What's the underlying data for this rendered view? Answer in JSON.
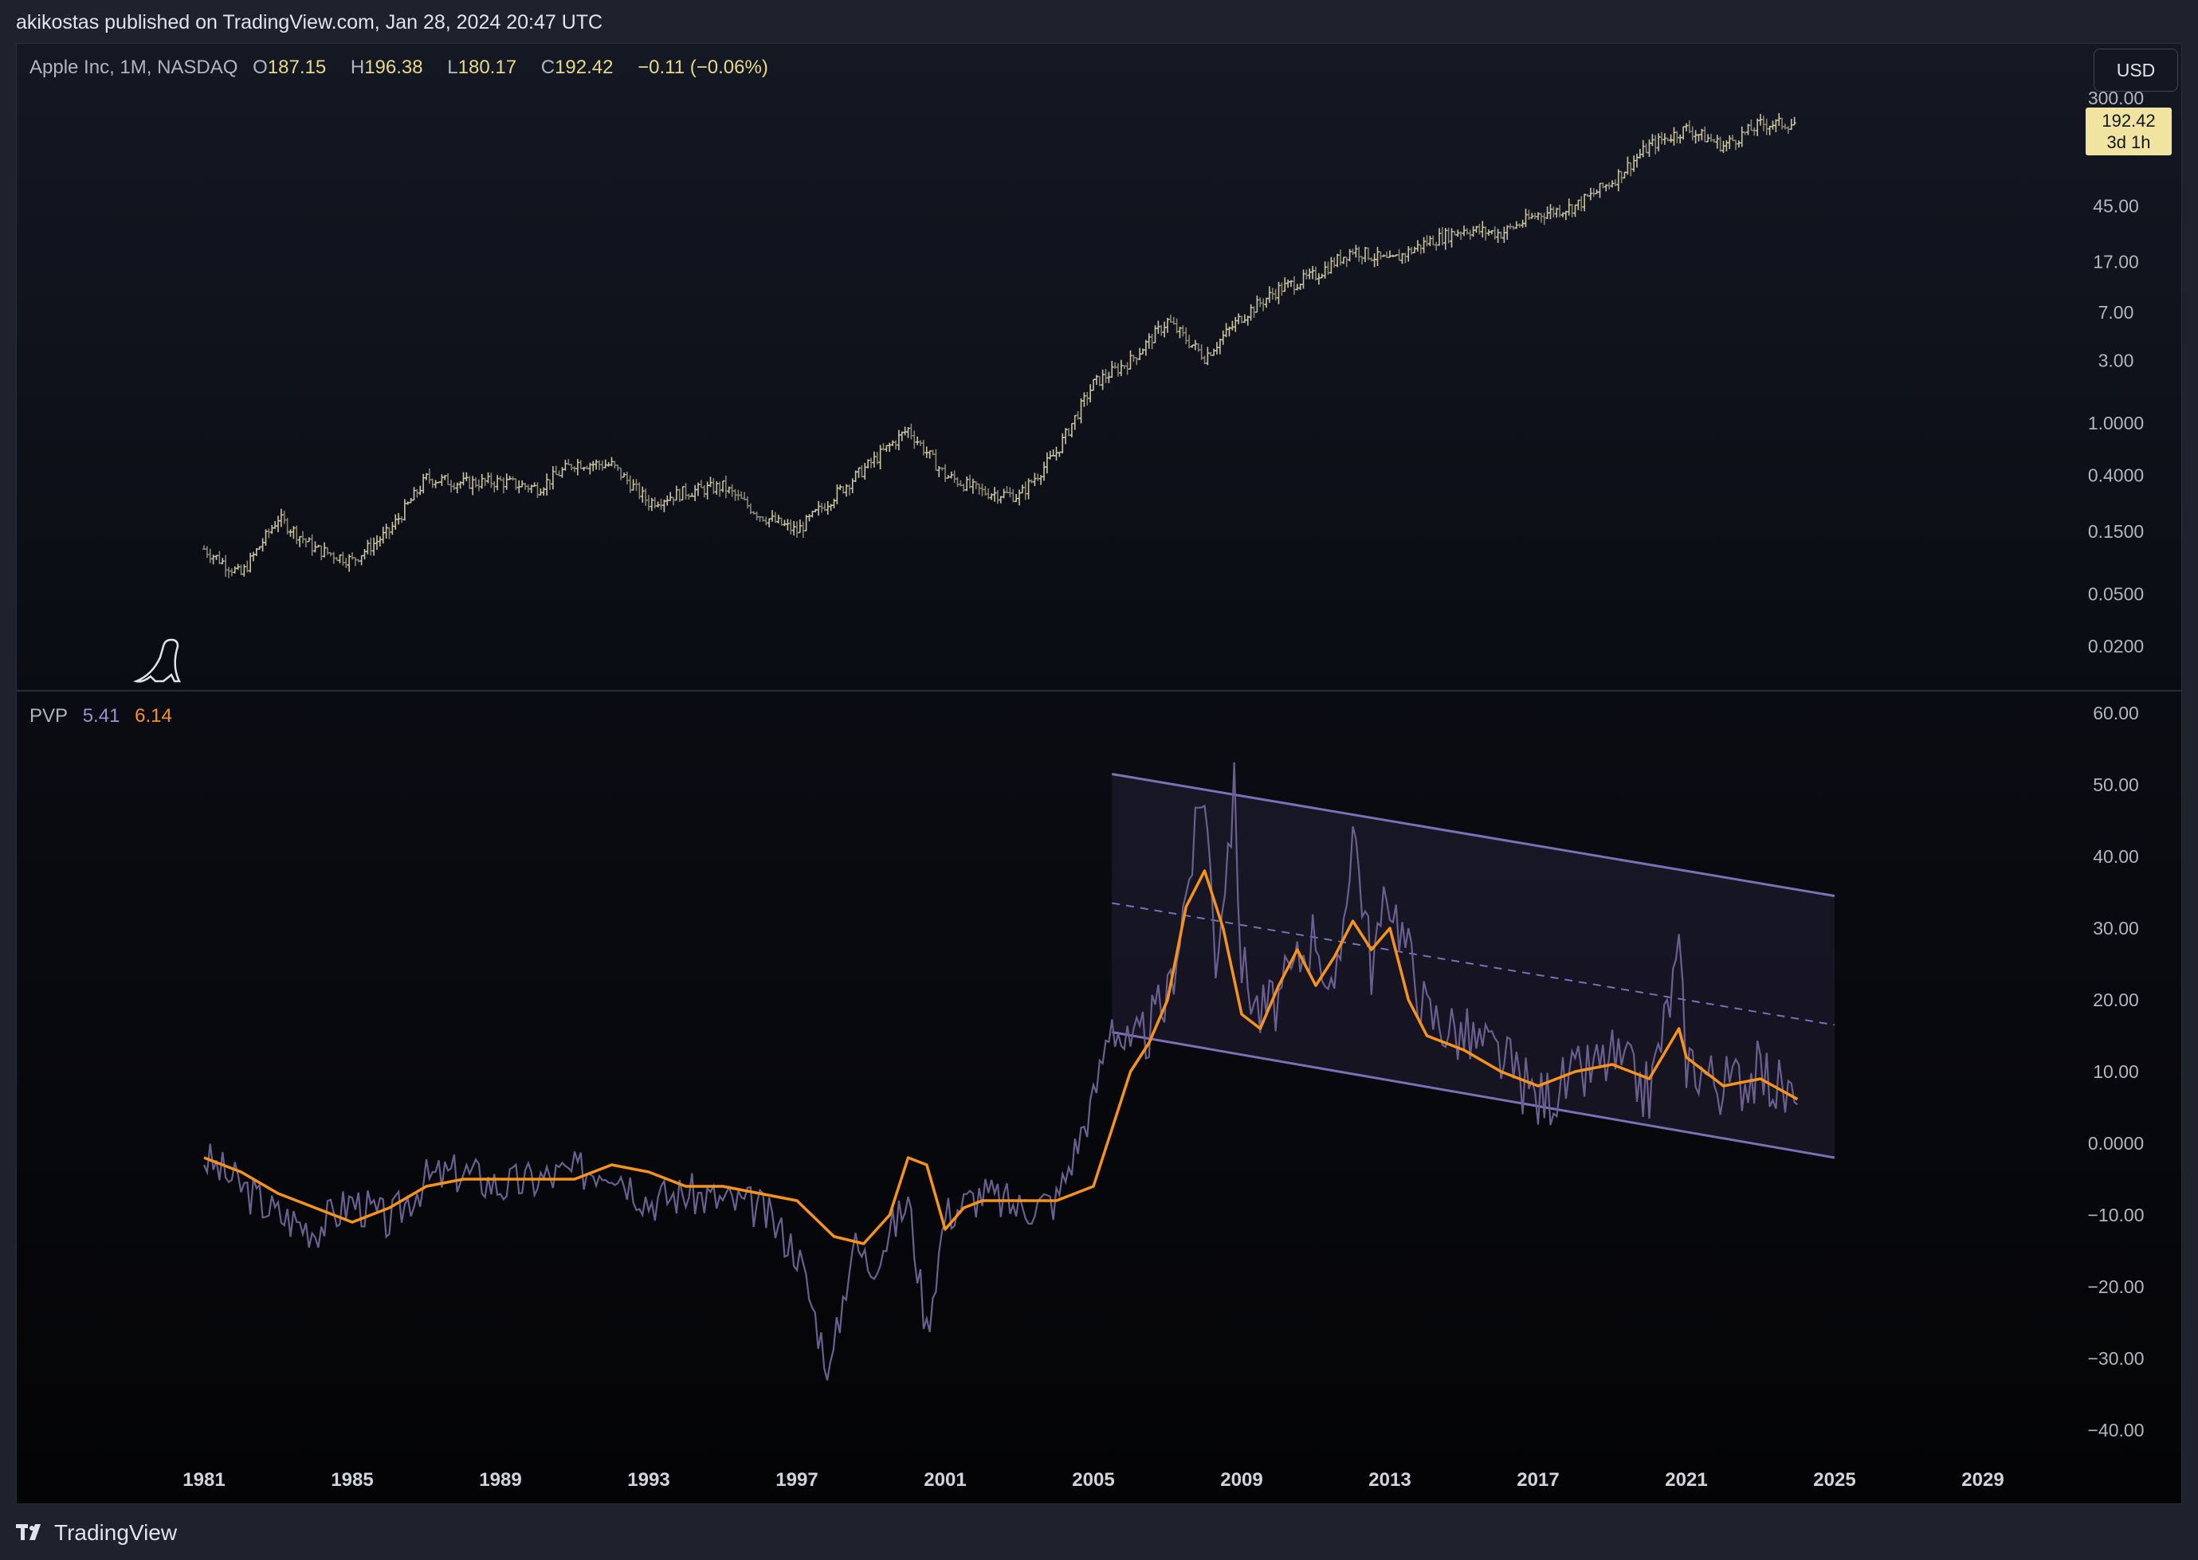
{
  "header": {
    "publish_info": "akikostas published on TradingView.com, Jan 28, 2024 20:47 UTC"
  },
  "price_pane": {
    "symbol": "Apple Inc, 1M, NASDAQ",
    "open_label": "O",
    "open": "187.15",
    "high_label": "H",
    "high": "196.38",
    "low_label": "L",
    "low": "180.17",
    "close_label": "C",
    "close": "192.42",
    "change": "−0.11 (−0.06%)",
    "currency_button": "USD",
    "price_tag": {
      "value": "192.42",
      "countdown": "3d 1h",
      "color": "#f1e3a0"
    },
    "y_ticks": [
      "300.00",
      "45.00",
      "17.00",
      "7.00",
      "3.00",
      "1.0000",
      "0.4000",
      "0.1500",
      "0.0500",
      "0.0200"
    ]
  },
  "indicator_pane": {
    "name": "PVP",
    "value1": "5.41",
    "value2": "6.14",
    "value1_color": "#9c8fd4",
    "value2_color": "#f7931a",
    "y_ticks": [
      "60.00",
      "50.00",
      "40.00",
      "30.00",
      "20.00",
      "10.00",
      "0.0000",
      "−10.00",
      "−20.00",
      "−30.00",
      "−40.00"
    ]
  },
  "x_axis": {
    "ticks": [
      "1981",
      "1985",
      "1989",
      "1993",
      "1997",
      "2001",
      "2005",
      "2009",
      "2013",
      "2017",
      "2021",
      "2025",
      "2029"
    ]
  },
  "footer": {
    "brand": "TradingView"
  },
  "icons": [
    "dinosaur-icon",
    "tradingview-logo-icon"
  ],
  "colors": {
    "background": "#131722",
    "bars": "#c9c3a0",
    "raw_series": "#6a5f8f",
    "ma_series": "#f7931a",
    "channel": "#7b6fb5"
  },
  "chart_data": [
    {
      "type": "ohlc",
      "title": "Apple Inc, 1M, NASDAQ",
      "y_scale": "log",
      "x": [
        1981,
        1982,
        1983,
        1984,
        1985,
        1986,
        1987,
        1988,
        1989,
        1990,
        1991,
        1992,
        1993,
        1994,
        1995,
        1996,
        1997,
        1998,
        1999,
        2000,
        2001,
        2002,
        2003,
        2004,
        2005,
        2006,
        2007,
        2008,
        2009,
        2010,
        2011,
        2012,
        2013,
        2014,
        2015,
        2016,
        2017,
        2018,
        2019,
        2020,
        2021,
        2022,
        2023,
        2024
      ],
      "close_approx": [
        0.11,
        0.07,
        0.19,
        0.11,
        0.09,
        0.15,
        0.38,
        0.35,
        0.36,
        0.32,
        0.5,
        0.48,
        0.25,
        0.3,
        0.33,
        0.2,
        0.15,
        0.28,
        0.5,
        0.9,
        0.4,
        0.3,
        0.28,
        0.6,
        2.0,
        3.0,
        6.0,
        3.2,
        6.5,
        10.5,
        13.5,
        21,
        17,
        24,
        30,
        28,
        39,
        45,
        70,
        130,
        175,
        130,
        190,
        192.42
      ]
    },
    {
      "type": "line",
      "title": "PVP",
      "series": [
        {
          "name": "PVP",
          "x": [
            1981,
            1982,
            1983,
            1984,
            1985,
            1986,
            1987,
            1988,
            1989,
            1990,
            1991,
            1992,
            1993,
            1994,
            1995,
            1996,
            1997,
            1997.9,
            1998.5,
            1999,
            2000,
            2000.5,
            2001,
            2002,
            2003,
            2004,
            2005,
            2005.5,
            2006,
            2007,
            2008,
            2008.3,
            2008.8,
            2009,
            2009.5,
            2010,
            2011,
            2011.5,
            2012,
            2012.5,
            2013,
            2014,
            2015,
            2016,
            2017,
            2018,
            2019,
            2020,
            2020.8,
            2021,
            2022,
            2023,
            2024
          ],
          "values": [
            -2,
            -6,
            -10,
            -12,
            -8,
            -11,
            -5,
            -4,
            -6,
            -5,
            -4,
            -3,
            -8,
            -7,
            -8,
            -9,
            -15,
            -32,
            -14,
            -17,
            -8,
            -26,
            -10,
            -7,
            -9,
            -8,
            6,
            18,
            12,
            20,
            50,
            26,
            49,
            25,
            18,
            20,
            30,
            18,
            45,
            25,
            35,
            18,
            15,
            12,
            6,
            9,
            12,
            7,
            26,
            12,
            8,
            10,
            5.41
          ]
        },
        {
          "name": "MA",
          "x": [
            1981,
            1982,
            1983,
            1984,
            1985,
            1986,
            1987,
            1988,
            1989,
            1990,
            1991,
            1992,
            1993,
            1994,
            1995,
            1996,
            1997,
            1998,
            1998.8,
            1999.5,
            2000,
            2000.5,
            2001,
            2001.5,
            2002,
            2003,
            2004,
            2004.5,
            2005,
            2005.5,
            2006,
            2006.5,
            2007,
            2007.5,
            2008,
            2008.5,
            2009,
            2009.5,
            2010,
            2010.5,
            2011,
            2011.5,
            2012,
            2012.5,
            2013,
            2013.5,
            2014,
            2015,
            2016,
            2017,
            2018,
            2019,
            2020,
            2020.8,
            2021,
            2022,
            2023,
            2024
          ],
          "values": [
            -2,
            -4,
            -7,
            -9,
            -11,
            -9,
            -6,
            -5,
            -5,
            -5,
            -5,
            -3,
            -4,
            -6,
            -6,
            -7,
            -8,
            -13,
            -14,
            -10,
            -2,
            -3,
            -12,
            -9,
            -8,
            -8,
            -8,
            -7,
            -6,
            2,
            10,
            14,
            20,
            33,
            38,
            30,
            18,
            16,
            22,
            27,
            22,
            26,
            31,
            27,
            30,
            20,
            15,
            13,
            10,
            8,
            10,
            11,
            9,
            16,
            12,
            8,
            9,
            6.14
          ]
        }
      ],
      "annotations": {
        "regression_channel": {
          "x_start": 2005.5,
          "x_end": 2025,
          "upper": [
            51.5,
            34.5
          ],
          "middle": [
            33.5,
            16.5
          ],
          "lower": [
            15.5,
            -2
          ]
        }
      },
      "ylim": [
        -40,
        60
      ]
    }
  ]
}
